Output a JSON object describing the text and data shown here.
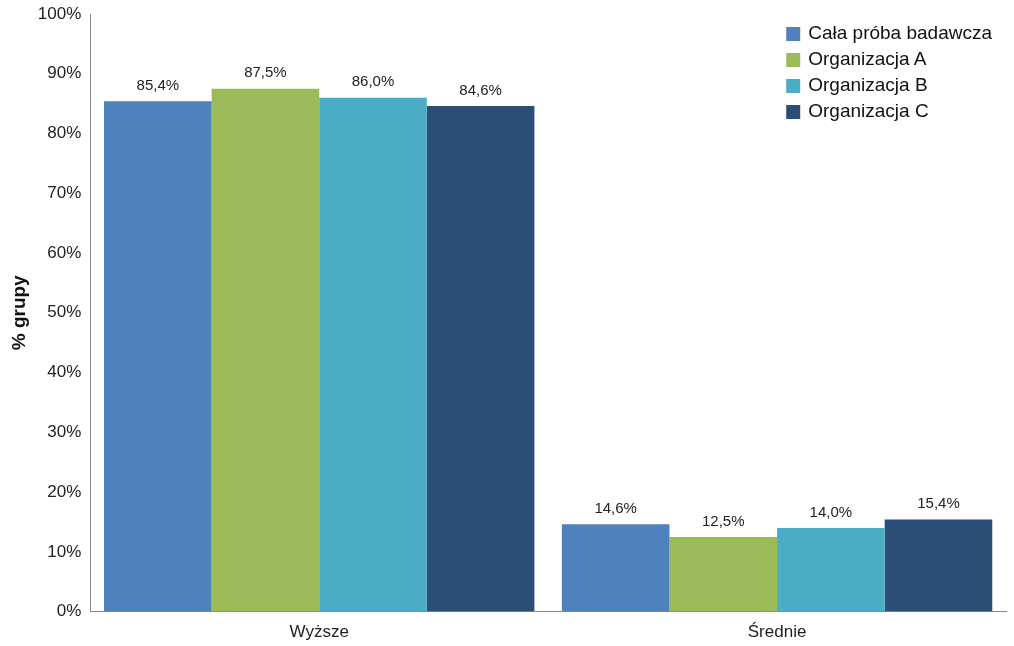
{
  "chart_data": {
    "type": "bar",
    "ylabel": "% grupy",
    "categories": [
      "Wyższe",
      "Średnie"
    ],
    "series": [
      {
        "name": "Cała próba badawcza",
        "color": "#4f81bd",
        "values": [
          85.4,
          14.6
        ],
        "value_labels": [
          "85,4%",
          "14,6%"
        ]
      },
      {
        "name": "Organizacja A",
        "color": "#9bbb59",
        "values": [
          87.5,
          12.5
        ],
        "value_labels": [
          "87,5%",
          "12,5%"
        ]
      },
      {
        "name": "Organizacja B",
        "color": "#4bacc6",
        "values": [
          86.0,
          14.0
        ],
        "value_labels": [
          "86,0%",
          "14,0%"
        ]
      },
      {
        "name": "Organizacja C",
        "color": "#2c4d75",
        "values": [
          84.6,
          15.4
        ],
        "value_labels": [
          "84,6%",
          "15,4%"
        ]
      }
    ],
    "ylim": [
      0,
      100
    ],
    "yticks": [
      {
        "value": 0,
        "label": "0%"
      },
      {
        "value": 10,
        "label": "10%"
      },
      {
        "value": 20,
        "label": "20%"
      },
      {
        "value": 30,
        "label": "30%"
      },
      {
        "value": 40,
        "label": "40%"
      },
      {
        "value": 50,
        "label": "50%"
      },
      {
        "value": 60,
        "label": "60%"
      },
      {
        "value": 70,
        "label": "70%"
      },
      {
        "value": 80,
        "label": "80%"
      },
      {
        "value": 90,
        "label": "90%"
      },
      {
        "value": 100,
        "label": "100%"
      }
    ],
    "grid": false,
    "legend": "top right"
  }
}
